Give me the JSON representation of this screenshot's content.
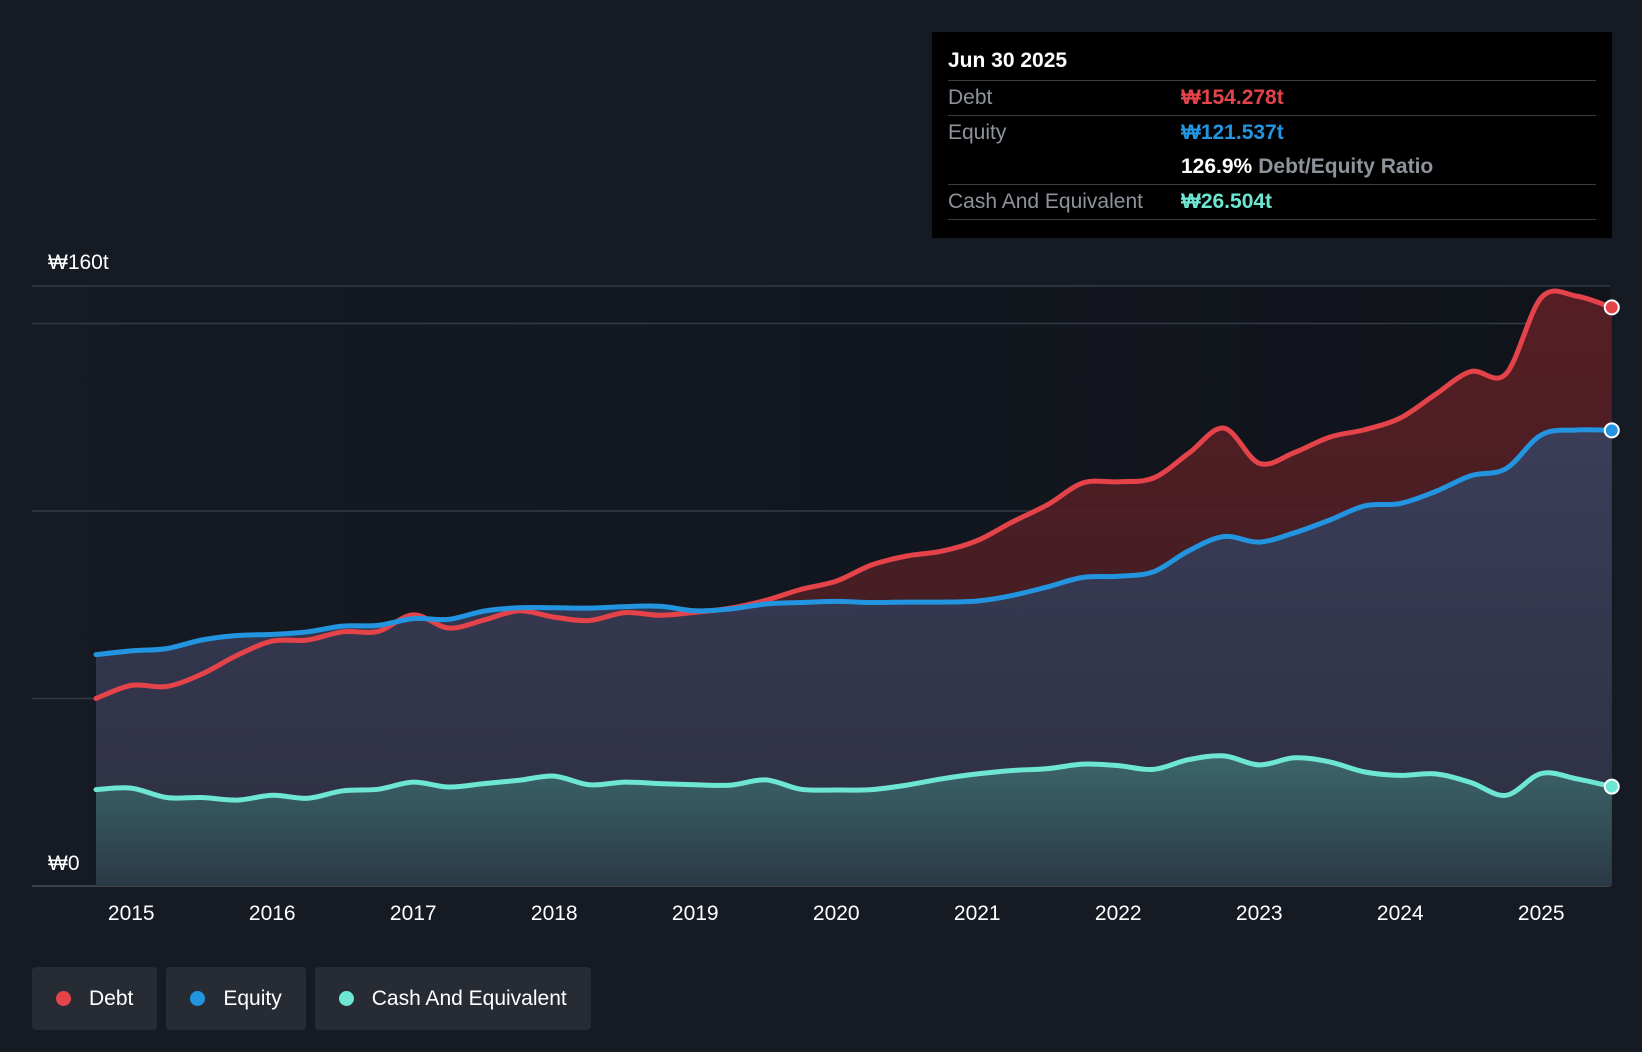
{
  "tooltip": {
    "date": "Jun 30 2025",
    "debt_label": "Debt",
    "debt_value": "₩154.278t",
    "equity_label": "Equity",
    "equity_value": "₩121.537t",
    "ratio_value": "126.9%",
    "ratio_label": "Debt/Equity Ratio",
    "cash_label": "Cash And Equivalent",
    "cash_value": "₩26.504t"
  },
  "legend": {
    "debt": "Debt",
    "equity": "Equity",
    "cash": "Cash And Equivalent"
  },
  "colors": {
    "debt": "#e5434a",
    "equity": "#2394e0",
    "cash": "#6ee6d4",
    "background": "#151a23"
  },
  "chart_data": {
    "type": "area",
    "title": "",
    "xlabel": "",
    "ylabel": "",
    "y_top_label": "₩160t",
    "y_bottom_label": "₩0",
    "ylim": [
      0,
      160
    ],
    "xlim": [
      2014.74,
      2025.5
    ],
    "x_ticks": [
      2015,
      2016,
      2017,
      2018,
      2019,
      2020,
      2021,
      2022,
      2023,
      2024,
      2025
    ],
    "x_tick_labels": [
      "2015",
      "2016",
      "2017",
      "2018",
      "2019",
      "2020",
      "2021",
      "2022",
      "2023",
      "2024",
      "2025"
    ],
    "gridlines": [
      0,
      50,
      100,
      150,
      160
    ],
    "series": [
      {
        "name": "Debt",
        "color": "#e5434a",
        "points": [
          [
            2014.75,
            50.0
          ],
          [
            2015.0,
            53.5
          ],
          [
            2015.25,
            53.2
          ],
          [
            2015.5,
            56.5
          ],
          [
            2015.75,
            61.5
          ],
          [
            2016.0,
            65.3
          ],
          [
            2016.25,
            65.6
          ],
          [
            2016.5,
            67.8
          ],
          [
            2016.75,
            67.9
          ],
          [
            2017.0,
            72.3
          ],
          [
            2017.25,
            68.8
          ],
          [
            2017.5,
            70.9
          ],
          [
            2017.75,
            73.4
          ],
          [
            2018.0,
            71.7
          ],
          [
            2018.25,
            70.8
          ],
          [
            2018.5,
            72.9
          ],
          [
            2018.75,
            72.2
          ],
          [
            2019.0,
            73.0
          ],
          [
            2019.25,
            74.1
          ],
          [
            2019.5,
            76.2
          ],
          [
            2019.75,
            79.1
          ],
          [
            2020.0,
            81.3
          ],
          [
            2020.25,
            85.6
          ],
          [
            2020.5,
            88.0
          ],
          [
            2020.75,
            89.3
          ],
          [
            2021.0,
            92.1
          ],
          [
            2021.25,
            97.1
          ],
          [
            2021.5,
            101.7
          ],
          [
            2021.75,
            107.5
          ],
          [
            2022.0,
            107.8
          ],
          [
            2022.25,
            108.8
          ],
          [
            2022.5,
            115.4
          ],
          [
            2022.75,
            122.1
          ],
          [
            2023.0,
            112.7
          ],
          [
            2023.25,
            115.6
          ],
          [
            2023.5,
            119.7
          ],
          [
            2023.75,
            121.7
          ],
          [
            2024.0,
            124.8
          ],
          [
            2024.25,
            131.1
          ],
          [
            2024.5,
            137.2
          ],
          [
            2024.75,
            136.6
          ],
          [
            2025.0,
            156.9
          ],
          [
            2025.25,
            157.3
          ],
          [
            2025.5,
            154.3
          ]
        ]
      },
      {
        "name": "Equity",
        "color": "#2394e0",
        "points": [
          [
            2014.75,
            61.7
          ],
          [
            2015.0,
            62.7
          ],
          [
            2015.25,
            63.3
          ],
          [
            2015.5,
            65.6
          ],
          [
            2015.75,
            66.8
          ],
          [
            2016.0,
            67.1
          ],
          [
            2016.25,
            67.8
          ],
          [
            2016.5,
            69.3
          ],
          [
            2016.75,
            69.5
          ],
          [
            2017.0,
            71.3
          ],
          [
            2017.25,
            71.1
          ],
          [
            2017.5,
            73.3
          ],
          [
            2017.75,
            74.2
          ],
          [
            2018.0,
            74.2
          ],
          [
            2018.25,
            74.1
          ],
          [
            2018.5,
            74.5
          ],
          [
            2018.75,
            74.6
          ],
          [
            2019.0,
            73.4
          ],
          [
            2019.25,
            73.9
          ],
          [
            2019.5,
            75.2
          ],
          [
            2019.75,
            75.6
          ],
          [
            2020.0,
            75.9
          ],
          [
            2020.25,
            75.6
          ],
          [
            2020.5,
            75.7
          ],
          [
            2020.75,
            75.7
          ],
          [
            2021.0,
            76.0
          ],
          [
            2021.25,
            77.5
          ],
          [
            2021.5,
            79.8
          ],
          [
            2021.75,
            82.3
          ],
          [
            2022.0,
            82.6
          ],
          [
            2022.25,
            83.8
          ],
          [
            2022.5,
            89.4
          ],
          [
            2022.75,
            93.2
          ],
          [
            2023.0,
            91.7
          ],
          [
            2023.25,
            94.2
          ],
          [
            2023.5,
            97.6
          ],
          [
            2023.75,
            101.4
          ],
          [
            2024.0,
            102.0
          ],
          [
            2024.25,
            105.2
          ],
          [
            2024.5,
            109.4
          ],
          [
            2024.75,
            111.3
          ],
          [
            2025.0,
            120.3
          ],
          [
            2025.25,
            121.6
          ],
          [
            2025.5,
            121.5
          ]
        ]
      },
      {
        "name": "Cash And Equivalent",
        "color": "#6ee6d4",
        "points": [
          [
            2014.75,
            25.7
          ],
          [
            2015.0,
            26.1
          ],
          [
            2015.25,
            23.6
          ],
          [
            2015.5,
            23.6
          ],
          [
            2015.75,
            22.9
          ],
          [
            2016.0,
            24.2
          ],
          [
            2016.25,
            23.4
          ],
          [
            2016.5,
            25.4
          ],
          [
            2016.75,
            25.8
          ],
          [
            2017.0,
            27.7
          ],
          [
            2017.25,
            26.4
          ],
          [
            2017.5,
            27.3
          ],
          [
            2017.75,
            28.2
          ],
          [
            2018.0,
            29.3
          ],
          [
            2018.25,
            27.0
          ],
          [
            2018.5,
            27.7
          ],
          [
            2018.75,
            27.3
          ],
          [
            2019.0,
            27.0
          ],
          [
            2019.25,
            26.9
          ],
          [
            2019.5,
            28.3
          ],
          [
            2019.75,
            25.8
          ],
          [
            2020.0,
            25.6
          ],
          [
            2020.25,
            25.7
          ],
          [
            2020.5,
            26.9
          ],
          [
            2020.75,
            28.6
          ],
          [
            2021.0,
            29.9
          ],
          [
            2021.25,
            30.8
          ],
          [
            2021.5,
            31.3
          ],
          [
            2021.75,
            32.5
          ],
          [
            2022.0,
            32.1
          ],
          [
            2022.25,
            31.1
          ],
          [
            2022.5,
            33.7
          ],
          [
            2022.75,
            34.7
          ],
          [
            2023.0,
            32.3
          ],
          [
            2023.25,
            34.2
          ],
          [
            2023.5,
            33.1
          ],
          [
            2023.75,
            30.4
          ],
          [
            2024.0,
            29.5
          ],
          [
            2024.25,
            29.9
          ],
          [
            2024.5,
            27.6
          ],
          [
            2024.75,
            24.2
          ],
          [
            2025.0,
            30.0
          ],
          [
            2025.25,
            28.6
          ],
          [
            2025.5,
            26.5
          ]
        ]
      }
    ]
  }
}
